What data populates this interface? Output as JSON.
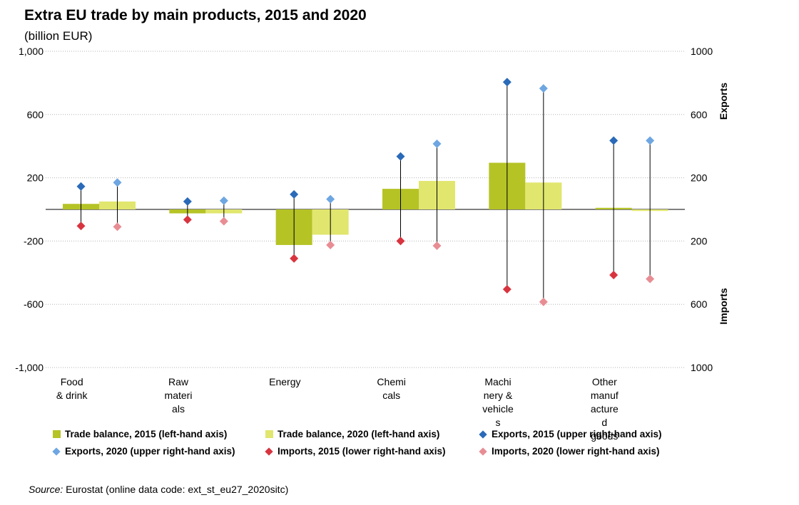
{
  "title": "Extra EU trade by main products, 2015 and 2020",
  "subtitle": "(billion EUR)",
  "source": {
    "label": "Source:",
    "text": "Eurostat (online data code: ext_st_eu27_2020sitc)"
  },
  "colors": {
    "balance_2015": "#b5c325",
    "balance_2020": "#e1e66e",
    "exports_2015": "#2a6ab8",
    "exports_2020": "#6ea6e2",
    "imports_2015": "#d8343f",
    "imports_2020": "#e88d94"
  },
  "chart_data": {
    "type": "bar",
    "title": "Extra EU trade by main products, 2015 and 2020",
    "subtitle": "(billion EUR)",
    "categories": [
      [
        "Food",
        "& drink"
      ],
      [
        "Raw",
        "materi",
        "als"
      ],
      [
        "Energy"
      ],
      [
        "Chemi",
        "cals"
      ],
      [
        "Machi",
        "nery &",
        "vehicle",
        "s"
      ],
      [
        "Other",
        "manuf",
        "acture",
        "d",
        "goods"
      ]
    ],
    "left_axis": {
      "ylim": [
        -1000,
        1000
      ],
      "ticks": [
        -1000,
        -600,
        -200,
        200,
        600,
        1000
      ],
      "tick_labels": [
        "-1,000",
        "-600",
        "-200",
        "200",
        "600",
        "1,000"
      ]
    },
    "right_axis": {
      "upper_label": "Exports",
      "lower_label": "Imports",
      "ticks": [
        "1000",
        "600",
        "200",
        "200",
        "600",
        "1000"
      ]
    },
    "series": [
      {
        "name": "Trade balance, 2015 (left-hand axis)",
        "kind": "bar",
        "values": [
          35,
          -25,
          -225,
          130,
          295,
          10
        ]
      },
      {
        "name": "Trade balance, 2020 (left-hand axis)",
        "kind": "bar",
        "values": [
          50,
          -25,
          -160,
          180,
          170,
          -10
        ]
      },
      {
        "name": "Exports, 2015 (upper right-hand axis)",
        "kind": "marker",
        "values": [
          145,
          50,
          95,
          335,
          805,
          435
        ]
      },
      {
        "name": "Exports, 2020 (upper right-hand axis)",
        "kind": "marker",
        "values": [
          170,
          55,
          65,
          415,
          765,
          435
        ]
      },
      {
        "name": "Imports, 2015 (lower right-hand axis)",
        "kind": "marker",
        "values": [
          105,
          65,
          310,
          200,
          505,
          415
        ]
      },
      {
        "name": "Imports, 2020 (lower right-hand axis)",
        "kind": "marker",
        "values": [
          110,
          75,
          225,
          230,
          585,
          440
        ]
      }
    ],
    "grid": true,
    "legend_position": "bottom"
  }
}
